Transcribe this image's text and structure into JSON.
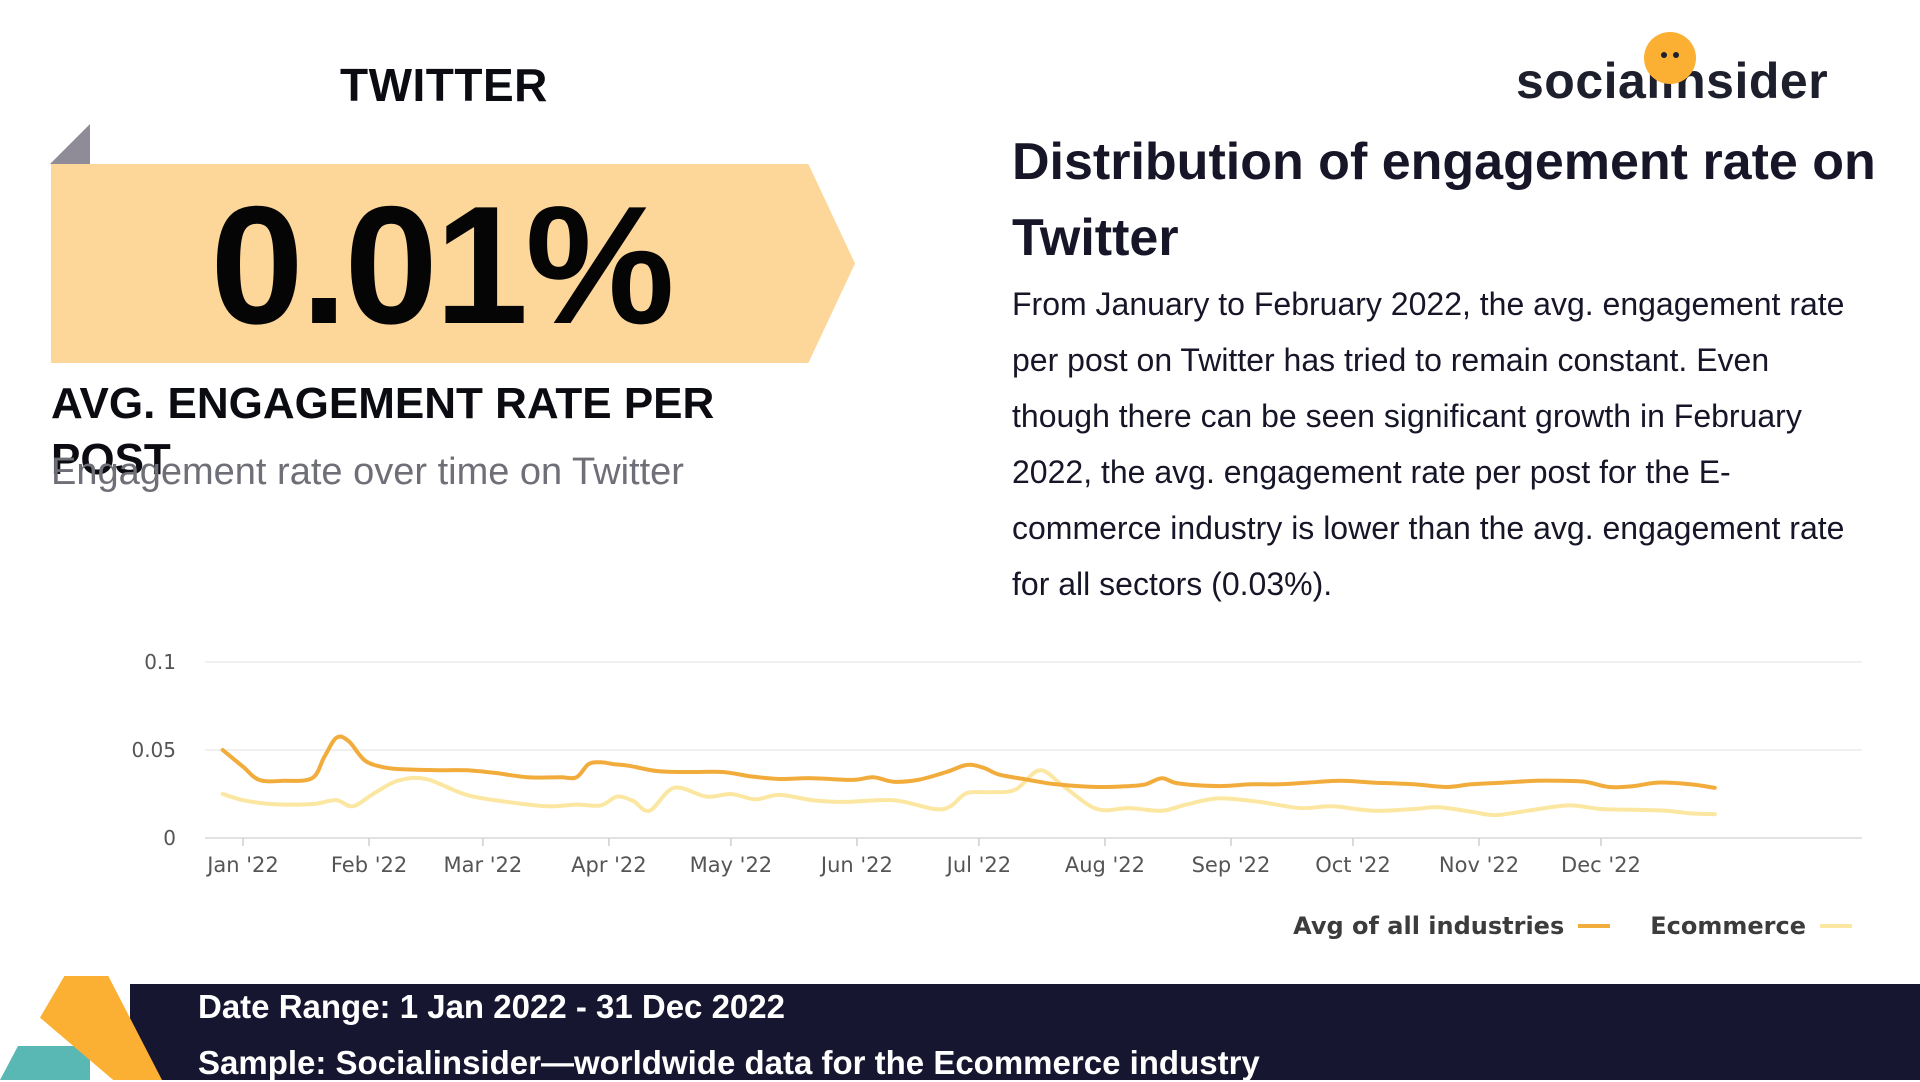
{
  "platform": "TWITTER",
  "kpi": {
    "value": "0.01%",
    "label": "AVG. ENGAGEMENT RATE PER POST"
  },
  "chart_subtitle": "Engagement rate over time on Twitter",
  "logo": {
    "text": "socialinsider"
  },
  "headline": "Distribution of engagement rate on Twitter",
  "description": "From January to February 2022, the avg. engagement rate per post on Twitter has tried to remain constant. Even though there can be seen significant growth in February 2022, the avg. engagement rate per post for the E-commerce industry is lower than the avg. engagement rate for all sectors (0.03%).",
  "footer": {
    "date_range": "Date Range: 1 Jan 2022 - 31 Dec 2022",
    "sample": "Sample: Socialinsider—worldwide data for the Ecommerce industry"
  },
  "colors": {
    "avg": "#f2ac3c",
    "ecommerce": "#fbe7a1",
    "banner": "#fdd699",
    "footer": "#171630"
  },
  "chart_data": {
    "type": "line",
    "title": "Engagement rate over time on Twitter",
    "xlabel": "",
    "ylabel": "",
    "ylim": [
      0,
      0.1
    ],
    "yticks": [
      0,
      0.05,
      0.1
    ],
    "ytick_labels": [
      "0",
      "0.05",
      "0.1"
    ],
    "grid": true,
    "legend_position": "bottom-right",
    "x_range": [
      0,
      365
    ],
    "categories": [
      "Jan '22",
      "Feb '22",
      "Mar '22",
      "Apr '22",
      "May '22",
      "Jun '22",
      "Jul '22",
      "Aug '22",
      "Sep '22",
      "Oct '22",
      "Nov '22",
      "Dec '22"
    ],
    "category_days": [
      0,
      31,
      59,
      90,
      120,
      151,
      181,
      212,
      243,
      273,
      304,
      334
    ],
    "series": [
      {
        "name": "Avg of all industries",
        "color": "#f2ac3c",
        "x": [
          -5,
          0,
          4,
          10,
          17,
          20,
          23,
          26,
          30,
          35,
          40,
          48,
          55,
          62,
          70,
          78,
          82,
          85,
          88,
          91,
          95,
          102,
          110,
          118,
          125,
          132,
          140,
          150,
          155,
          160,
          166,
          173,
          178,
          182,
          186,
          192,
          200,
          210,
          218,
          222,
          226,
          230,
          240,
          248,
          255,
          262,
          270,
          278,
          288,
          296,
          302,
          310,
          318,
          324,
          330,
          336,
          342,
          348,
          356,
          362
        ],
        "values": [
          0.05,
          0.0405,
          0.033,
          0.0325,
          0.034,
          0.046,
          0.057,
          0.055,
          0.044,
          0.04,
          0.039,
          0.0385,
          0.0385,
          0.037,
          0.0345,
          0.0345,
          0.0345,
          0.042,
          0.043,
          0.042,
          0.041,
          0.038,
          0.0375,
          0.0375,
          0.035,
          0.0335,
          0.034,
          0.033,
          0.0345,
          0.032,
          0.033,
          0.0375,
          0.0415,
          0.04,
          0.036,
          0.0335,
          0.0305,
          0.029,
          0.0295,
          0.0305,
          0.034,
          0.031,
          0.0295,
          0.0305,
          0.0305,
          0.0315,
          0.0325,
          0.0315,
          0.0305,
          0.029,
          0.0305,
          0.0315,
          0.0325,
          0.0325,
          0.032,
          0.029,
          0.0295,
          0.0315,
          0.0305,
          0.0285
        ]
      },
      {
        "name": "Ecommerce",
        "color": "#fbe7a1",
        "x": [
          -5,
          0,
          6,
          12,
          18,
          23,
          27,
          32,
          38,
          45,
          55,
          65,
          75,
          82,
          88,
          92,
          96,
          100,
          106,
          114,
          120,
          126,
          132,
          140,
          148,
          160,
          170,
          174,
          178,
          184,
          190,
          196,
          202,
          210,
          218,
          226,
          232,
          240,
          250,
          260,
          268,
          278,
          288,
          294,
          302,
          308,
          316,
          326,
          334,
          342,
          350,
          356,
          362
        ],
        "values": [
          0.025,
          0.0215,
          0.0195,
          0.019,
          0.0195,
          0.0215,
          0.018,
          0.025,
          0.0325,
          0.0335,
          0.0245,
          0.0205,
          0.018,
          0.019,
          0.0185,
          0.0235,
          0.021,
          0.0155,
          0.0285,
          0.0235,
          0.025,
          0.022,
          0.0245,
          0.0215,
          0.0205,
          0.0215,
          0.0165,
          0.018,
          0.0255,
          0.026,
          0.0275,
          0.0385,
          0.029,
          0.0165,
          0.017,
          0.0155,
          0.019,
          0.0225,
          0.0205,
          0.017,
          0.018,
          0.0155,
          0.0165,
          0.0175,
          0.015,
          0.013,
          0.0155,
          0.0185,
          0.0165,
          0.016,
          0.0155,
          0.014,
          0.0135
        ]
      }
    ]
  }
}
